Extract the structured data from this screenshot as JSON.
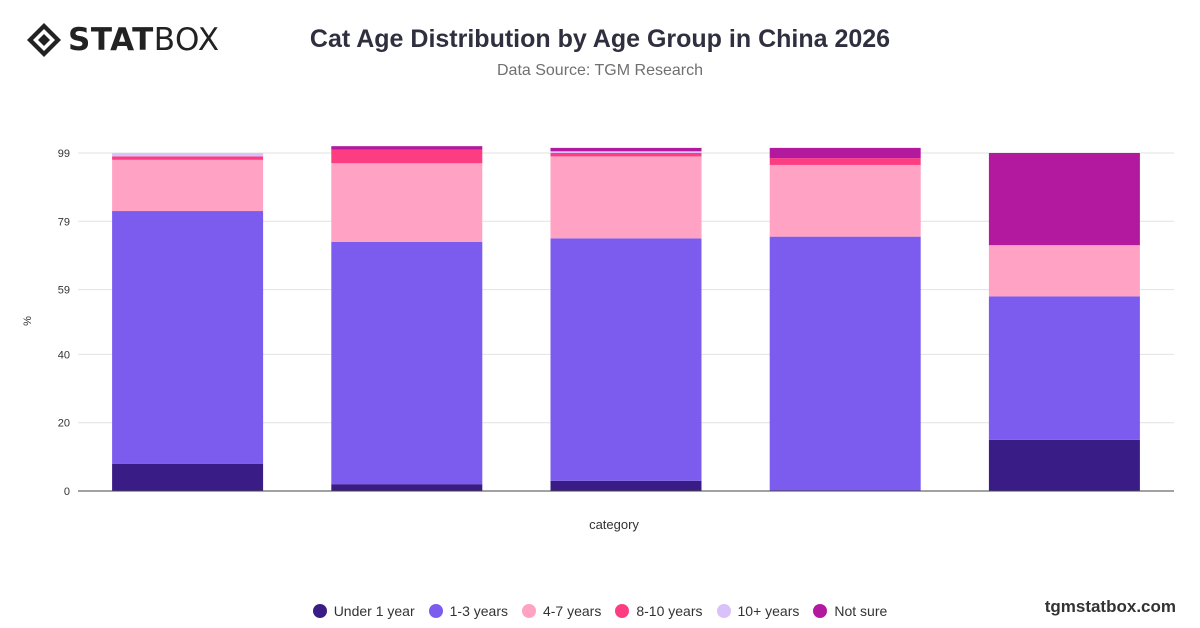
{
  "brand": {
    "logo_bold": "STAT",
    "logo_light": "BOX",
    "footer": "tgmstatbox.com"
  },
  "chart_data": {
    "type": "bar",
    "stacked": true,
    "title": "Cat Age Distribution by Age Group in China 2026",
    "subtitle": "Data Source: TGM Research",
    "xlabel": "category",
    "ylabel": "%",
    "categories": [
      "",
      "",
      "",
      "",
      ""
    ],
    "yticks": [
      0,
      20,
      40,
      59,
      79,
      99
    ],
    "ylim": [
      0,
      99
    ],
    "grid": true,
    "legend_position": "bottom",
    "series": [
      {
        "name": "Under 1 year",
        "color": "#3a1c86",
        "values": [
          8,
          2,
          3,
          0,
          15
        ]
      },
      {
        "name": "1-3 years",
        "color": "#7b5cee",
        "values": [
          74,
          71,
          71,
          74.5,
          42
        ]
      },
      {
        "name": "4-7 years",
        "color": "#ffa2c4",
        "values": [
          15,
          23,
          24,
          21,
          15
        ]
      },
      {
        "name": "8-10 years",
        "color": "#fc3d82",
        "values": [
          1,
          4,
          1,
          2,
          0
        ]
      },
      {
        "name": "10+ years",
        "color": "#d9c1fa",
        "values": [
          1,
          0,
          0.5,
          0,
          0
        ]
      },
      {
        "name": "Not sure",
        "color": "#b2199f",
        "values": [
          0,
          1,
          1,
          3,
          27
        ]
      }
    ]
  }
}
